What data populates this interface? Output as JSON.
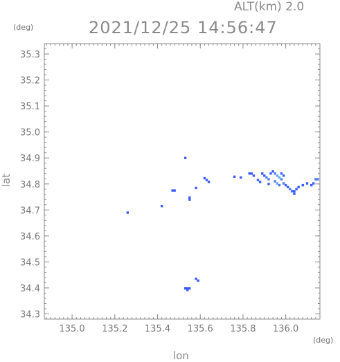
{
  "header": {
    "altitude_label": "ALT(km) 2.0",
    "timestamp": "2021/12/25 14:56:47"
  },
  "axes": {
    "y_unit": "(deg)",
    "x_unit": "(deg)",
    "xlabel": "lon",
    "ylabel": "lat",
    "xlim": [
      134.87,
      136.16
    ],
    "ylim": [
      34.28,
      35.34
    ],
    "x_ticks": [
      "135.0",
      "135.2",
      "135.4",
      "135.6",
      "135.8",
      "136.0"
    ],
    "y_ticks": [
      "34.3",
      "34.4",
      "34.5",
      "34.6",
      "34.7",
      "34.8",
      "34.9",
      "35.0",
      "35.1",
      "35.2",
      "35.3"
    ]
  },
  "colors": {
    "echo_weak": "#3a5cff",
    "echo_mid": "#4f7bff",
    "echo_strong": "#60a8ff",
    "frame": "#8a8a8a"
  },
  "chart_data": {
    "type": "heatmap",
    "echoes": [
      {
        "lon": 135.53,
        "lat": 34.9,
        "level": "weak"
      },
      {
        "lon": 135.63,
        "lat": 34.815,
        "level": "weak"
      },
      {
        "lon": 135.64,
        "lat": 34.808,
        "level": "weak"
      },
      {
        "lon": 135.62,
        "lat": 34.822,
        "level": "weak"
      },
      {
        "lon": 135.47,
        "lat": 34.775,
        "level": "weak"
      },
      {
        "lon": 135.48,
        "lat": 34.775,
        "level": "weak"
      },
      {
        "lon": 135.55,
        "lat": 34.748,
        "level": "weak"
      },
      {
        "lon": 135.55,
        "lat": 34.74,
        "level": "weak"
      },
      {
        "lon": 135.58,
        "lat": 34.785,
        "level": "weak"
      },
      {
        "lon": 135.42,
        "lat": 34.715,
        "level": "weak"
      },
      {
        "lon": 135.26,
        "lat": 34.69,
        "level": "weak"
      },
      {
        "lon": 135.58,
        "lat": 34.435,
        "level": "weak"
      },
      {
        "lon": 135.59,
        "lat": 34.428,
        "level": "weak"
      },
      {
        "lon": 135.53,
        "lat": 34.398,
        "level": "weak"
      },
      {
        "lon": 135.54,
        "lat": 34.398,
        "level": "weak"
      },
      {
        "lon": 135.55,
        "lat": 34.398,
        "level": "weak"
      },
      {
        "lon": 135.54,
        "lat": 34.392,
        "level": "weak"
      },
      {
        "lon": 135.76,
        "lat": 34.828,
        "level": "weak"
      },
      {
        "lon": 135.79,
        "lat": 34.825,
        "level": "weak"
      },
      {
        "lon": 135.83,
        "lat": 34.84,
        "level": "weak"
      },
      {
        "lon": 135.84,
        "lat": 34.84,
        "level": "weak"
      },
      {
        "lon": 135.85,
        "lat": 34.832,
        "level": "weak"
      },
      {
        "lon": 135.87,
        "lat": 34.815,
        "level": "weak"
      },
      {
        "lon": 135.88,
        "lat": 34.808,
        "level": "weak"
      },
      {
        "lon": 135.89,
        "lat": 34.84,
        "level": "weak"
      },
      {
        "lon": 135.9,
        "lat": 34.832,
        "level": "weak"
      },
      {
        "lon": 135.91,
        "lat": 34.825,
        "level": "mid"
      },
      {
        "lon": 135.92,
        "lat": 34.818,
        "level": "mid"
      },
      {
        "lon": 135.93,
        "lat": 34.84,
        "level": "weak"
      },
      {
        "lon": 135.94,
        "lat": 34.848,
        "level": "weak"
      },
      {
        "lon": 135.95,
        "lat": 34.84,
        "level": "mid"
      },
      {
        "lon": 135.96,
        "lat": 34.832,
        "level": "strong"
      },
      {
        "lon": 135.97,
        "lat": 34.825,
        "level": "strong"
      },
      {
        "lon": 135.98,
        "lat": 34.818,
        "level": "mid"
      },
      {
        "lon": 135.95,
        "lat": 34.81,
        "level": "mid"
      },
      {
        "lon": 135.96,
        "lat": 34.802,
        "level": "strong"
      },
      {
        "lon": 135.97,
        "lat": 34.795,
        "level": "mid"
      },
      {
        "lon": 135.99,
        "lat": 34.802,
        "level": "mid"
      },
      {
        "lon": 136.0,
        "lat": 34.795,
        "level": "weak"
      },
      {
        "lon": 136.01,
        "lat": 34.788,
        "level": "weak"
      },
      {
        "lon": 136.02,
        "lat": 34.78,
        "level": "mid"
      },
      {
        "lon": 136.03,
        "lat": 34.772,
        "level": "weak"
      },
      {
        "lon": 136.04,
        "lat": 34.772,
        "level": "weak"
      },
      {
        "lon": 136.05,
        "lat": 34.78,
        "level": "weak"
      },
      {
        "lon": 136.06,
        "lat": 34.788,
        "level": "weak"
      },
      {
        "lon": 136.08,
        "lat": 34.795,
        "level": "weak"
      },
      {
        "lon": 136.1,
        "lat": 34.802,
        "level": "weak"
      },
      {
        "lon": 136.12,
        "lat": 34.795,
        "level": "weak"
      },
      {
        "lon": 136.13,
        "lat": 34.802,
        "level": "weak"
      },
      {
        "lon": 136.14,
        "lat": 34.818,
        "level": "mid"
      },
      {
        "lon": 136.15,
        "lat": 34.818,
        "level": "mid"
      },
      {
        "lon": 135.98,
        "lat": 34.84,
        "level": "weak"
      },
      {
        "lon": 135.99,
        "lat": 34.832,
        "level": "weak"
      },
      {
        "lon": 135.92,
        "lat": 34.8,
        "level": "weak"
      },
      {
        "lon": 136.04,
        "lat": 34.762,
        "level": "weak"
      }
    ]
  }
}
